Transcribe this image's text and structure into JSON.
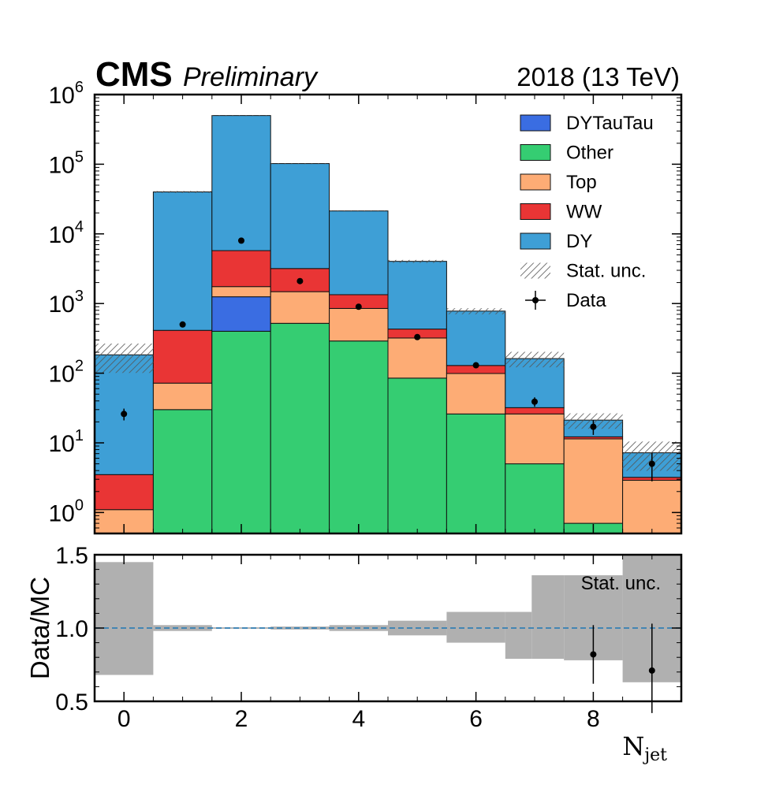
{
  "header": {
    "experiment": "CMS",
    "status": "Preliminary",
    "lumi": "2018 (13 TeV)"
  },
  "chart_data": {
    "type": "bar",
    "stacked": true,
    "x_bins": [
      0,
      1,
      2,
      3,
      4,
      5,
      6,
      7,
      8,
      9
    ],
    "x_edges": [
      -0.5,
      0.5,
      1.5,
      2.5,
      3.5,
      4.5,
      5.5,
      6.5,
      7.5,
      8.5,
      9.5
    ],
    "xlabel_main": "N",
    "xlabel_sub": "jet",
    "x_ticks": [
      0,
      2,
      4,
      6,
      8
    ],
    "x_tick_labels": [
      "0",
      "2",
      "4",
      "6",
      "8"
    ],
    "top_panel": {
      "yscale": "log",
      "ylim": [
        0.5,
        1000000
      ],
      "y_tick_labels": [
        {
          "base": "10",
          "exp": "0"
        },
        {
          "base": "10",
          "exp": "1"
        },
        {
          "base": "10",
          "exp": "2"
        },
        {
          "base": "10",
          "exp": "3"
        },
        {
          "base": "10",
          "exp": "4"
        },
        {
          "base": "10",
          "exp": "5"
        },
        {
          "base": "10",
          "exp": "6"
        }
      ],
      "y_tick_values": [
        1,
        10,
        100,
        1000,
        10000,
        100000,
        1000000
      ],
      "legend_position": "top-right",
      "stack_order_bottom_to_top": [
        "Other",
        "DYTauTau",
        "Top",
        "WW",
        "DY"
      ],
      "series": [
        {
          "name": "DYTauTau",
          "color": "#3A6DE2",
          "values": [
            0,
            0,
            850,
            0,
            0,
            0,
            0,
            0,
            0,
            0
          ]
        },
        {
          "name": "Other",
          "color": "#35CD72",
          "values": [
            0,
            30,
            400,
            520,
            290,
            85,
            26,
            5,
            0.7,
            0
          ]
        },
        {
          "name": "Top",
          "color": "#FDAC75",
          "values": [
            1.1,
            42,
            500,
            960,
            560,
            235,
            73,
            21,
            10.7,
            2.9
          ]
        },
        {
          "name": "WW",
          "color": "#E93535",
          "values": [
            2.4,
            340,
            4000,
            1700,
            490,
            110,
            30,
            6,
            0.8,
            0.3
          ]
        },
        {
          "name": "DY",
          "color": "#3E9FD6",
          "values": [
            180,
            39600,
            494000,
            99000,
            20000,
            3600,
            650,
            130,
            9,
            4
          ]
        }
      ],
      "stat_unc_band": {
        "name": "Stat. unc.",
        "totals": [
          183.5,
          40012,
          499750,
          102180,
          21340,
          4030,
          779,
          162,
          21.2,
          7.2
        ],
        "half_width_frac": [
          0.45,
          0.03,
          0.01,
          0.01,
          0.02,
          0.05,
          0.1,
          0.25,
          0.25,
          0.45
        ]
      },
      "data": {
        "name": "Data",
        "values": [
          26,
          500,
          8000,
          2100,
          900,
          330,
          130,
          39,
          17,
          5
        ],
        "errors": [
          5,
          22,
          90,
          46,
          30,
          18,
          11,
          6,
          4,
          2.2
        ]
      }
    },
    "ratio_panel": {
      "ylabel": "Data/MC",
      "ylim": [
        0.5,
        1.5
      ],
      "y_ticks": [
        0.5,
        1.0,
        1.5
      ],
      "y_tick_labels": [
        "0.5",
        "1.0",
        "1.5"
      ],
      "reference_line": 1.0,
      "band_label": "Stat. unc.",
      "band_low": [
        0.68,
        0.98,
        0.995,
        0.99,
        0.98,
        0.95,
        0.9,
        0.79,
        0.78,
        0.63
      ],
      "band_high": [
        1.45,
        1.02,
        1.005,
        1.01,
        1.02,
        1.05,
        1.11,
        1.27,
        1.36,
        1.5
      ],
      "band_high_bin7_step": 1.36,
      "ratio_points": [
        {
          "x": 8,
          "y": 0.82,
          "err_low": 0.2,
          "err_high": 0.2
        },
        {
          "x": 9,
          "y": 0.71,
          "err_low": 0.29,
          "err_high": 0.32
        }
      ]
    }
  }
}
